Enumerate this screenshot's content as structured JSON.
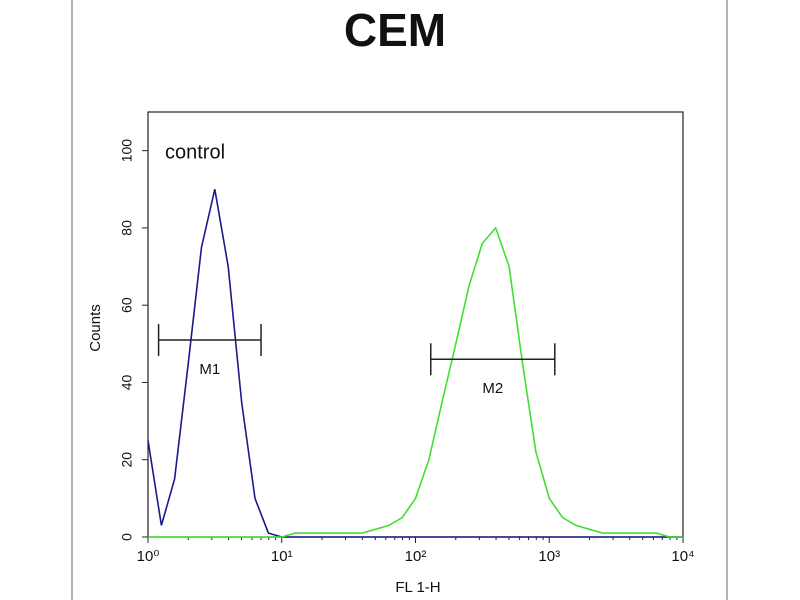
{
  "chart_data": {
    "type": "line",
    "title": "CEM",
    "xlabel": "FL 1-H",
    "ylabel": "Counts",
    "xscale": "log",
    "x": [
      1,
      1.26,
      1.58,
      2,
      2.51,
      3.16,
      3.98,
      5.01,
      6.31,
      7.94,
      10,
      12.6,
      15.8,
      20,
      25.1,
      31.6,
      39.8,
      50.1,
      63.1,
      79.4,
      100,
      126,
      158,
      200,
      251,
      316,
      398,
      501,
      631,
      794,
      1000,
      1259,
      1585,
      1995,
      2512,
      3162,
      3981,
      5012,
      6310,
      7943,
      10000
    ],
    "series": [
      {
        "name": "control",
        "color": "#1a1a8c",
        "values": [
          25,
          3,
          15,
          45,
          75,
          90,
          70,
          35,
          10,
          1,
          0,
          0,
          0,
          0,
          0,
          0,
          0,
          0,
          0,
          0,
          0,
          0,
          0,
          0,
          0,
          0,
          0,
          0,
          0,
          0,
          0,
          0,
          0,
          0,
          0,
          0,
          0,
          0,
          0,
          0,
          0
        ]
      },
      {
        "color": "#44dd33",
        "values": [
          0,
          0,
          0,
          0,
          0,
          0,
          0,
          0,
          0,
          0,
          0,
          1,
          1,
          1,
          1,
          1,
          1,
          2,
          3,
          5,
          10,
          20,
          35,
          50,
          65,
          76,
          80,
          70,
          45,
          22,
          10,
          5,
          3,
          2,
          1,
          1,
          1,
          1,
          1,
          0,
          0
        ]
      }
    ],
    "gates": [
      {
        "label": "M1",
        "range": [
          1.2,
          7
        ],
        "y": 51
      },
      {
        "label": "M2",
        "range": [
          130,
          1100
        ],
        "y": 46
      }
    ],
    "xlim": [
      1,
      10000
    ],
    "xticks": [
      {
        "value": 1,
        "label": "10⁰"
      },
      {
        "value": 10,
        "label": "10¹"
      },
      {
        "value": 100,
        "label": "10²"
      },
      {
        "value": 1000,
        "label": "10³"
      },
      {
        "value": 10000,
        "label": "10⁴"
      }
    ],
    "ylim": [
      0,
      110
    ],
    "yticks": [
      0,
      20,
      40,
      60,
      80,
      100
    ]
  }
}
